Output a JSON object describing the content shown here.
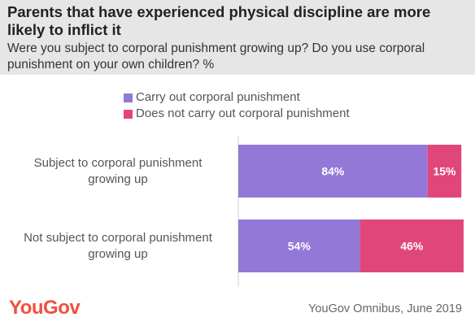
{
  "chart_data": {
    "type": "bar",
    "orientation": "horizontal",
    "stacked": true,
    "title": "Parents that have experienced physical discipline are more likely to inflict it",
    "subtitle": "Were you subject to corporal punishment growing up? Do you use corporal punishment on your own children? %",
    "categories": [
      "Subject to corporal punishment growing up",
      "Not subject to corporal punishment growing up"
    ],
    "category_lines": [
      [
        "Subject to corporal punishment",
        "growing up"
      ],
      [
        "Not subject to corporal punishment",
        "growing up"
      ]
    ],
    "series": [
      {
        "name": "Carry out corporal punishment",
        "values": [
          84,
          54
        ],
        "labels": [
          "84%",
          "54%"
        ],
        "color": "#9378d8"
      },
      {
        "name": "Does not carry out corporal punishment",
        "values": [
          15,
          46
        ],
        "labels": [
          "15%",
          "46%"
        ],
        "color": "#e1467b"
      }
    ],
    "legend_position": "top",
    "grid": false
  },
  "footer": {
    "logo": "YouGov",
    "source": "YouGov Omnibus, June 2019"
  }
}
